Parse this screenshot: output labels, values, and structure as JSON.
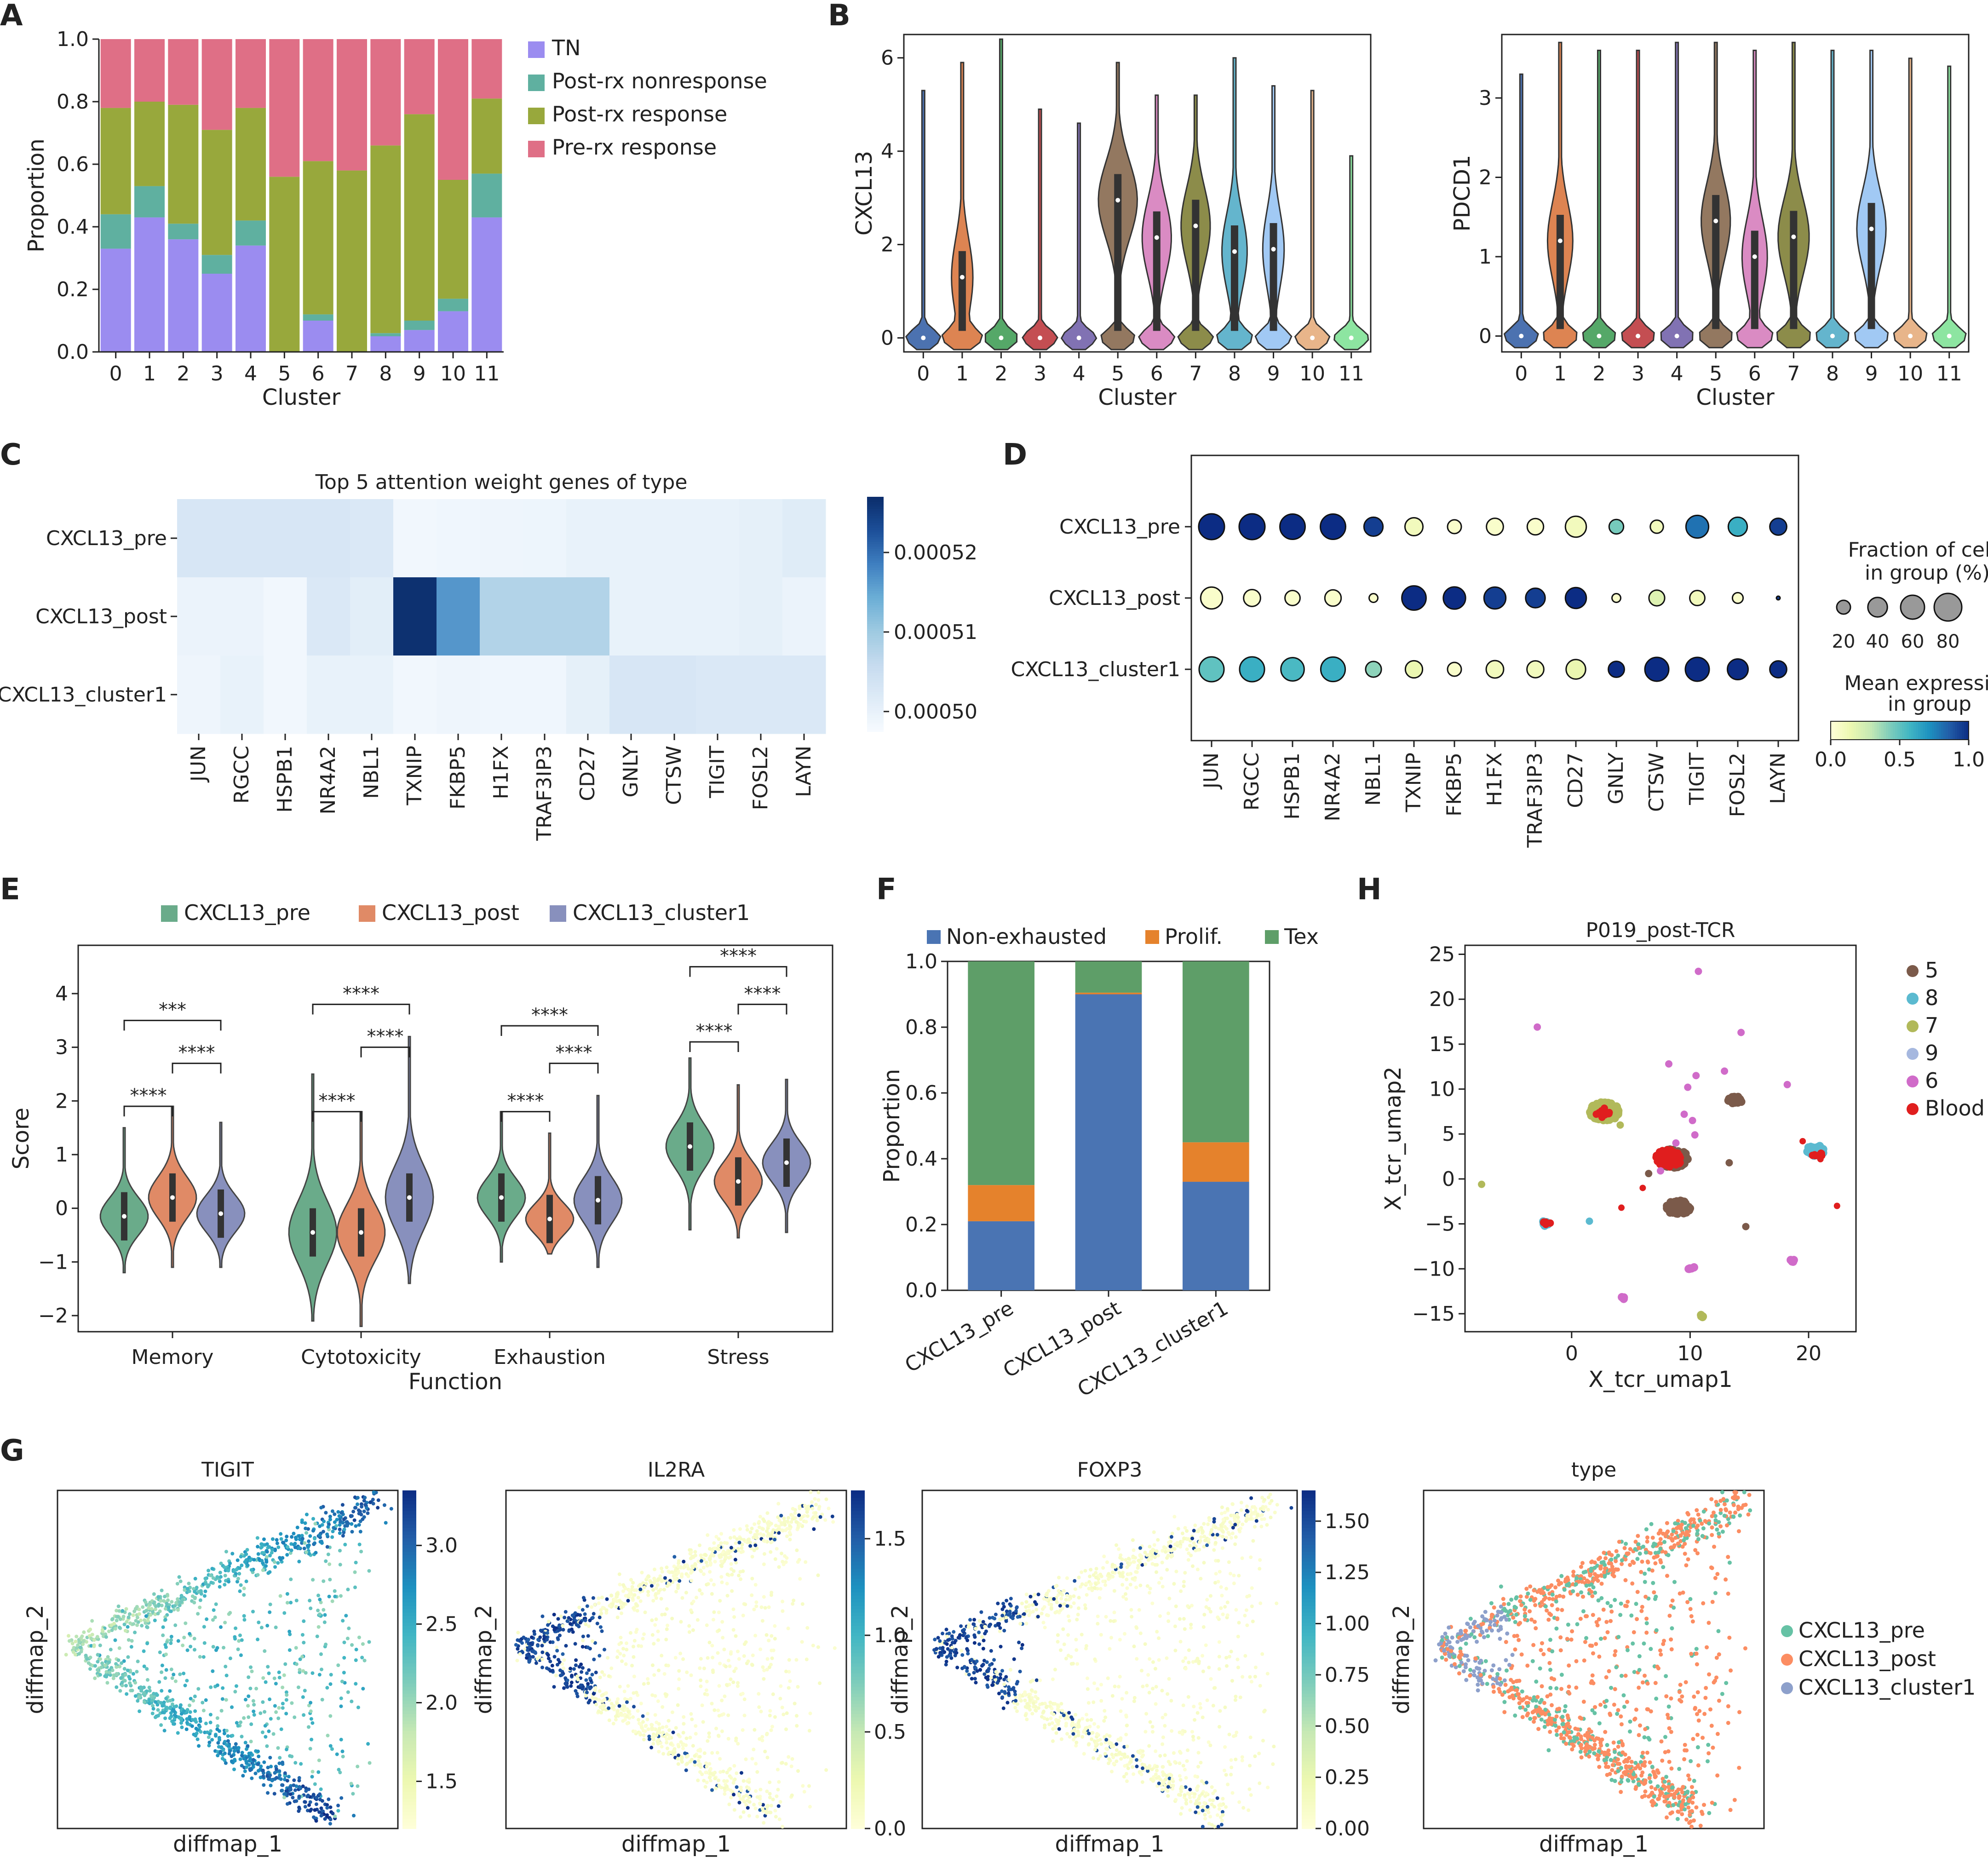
{
  "colors": {
    "cluster": [
      "#4c72b0",
      "#dd8452",
      "#55a868",
      "#c44e52",
      "#8172b3",
      "#937860",
      "#da8bc3",
      "#8c8c4a",
      "#64b5cd",
      "#a1c9f4",
      "#e8b58a",
      "#8de5a1"
    ],
    "A": {
      "TN": "#9b8cf0",
      "Post-rx nonresponse": "#5fb0a0",
      "Post-rx response": "#98a83c",
      "Pre-rx response": "#df6f86"
    },
    "E": {
      "CXCL13_pre": "#6aab8a",
      "CXCL13_post": "#e08a66",
      "CXCL13_cluster1": "#8890bd"
    },
    "F": {
      "Non-exhausted": "#4a74b3",
      "Prolif.": "#e5822c",
      "Tex": "#5e9e68"
    },
    "H": {
      "5": "#7b5a4a",
      "8": "#5bbad0",
      "7": "#b1b95a",
      "9": "#a6b8df",
      "6": "#d06bc9",
      "Blood": "#e01e1e"
    }
  },
  "panels": {
    "A": "A",
    "B": "B",
    "C": "C",
    "D": "D",
    "E": "E",
    "F": "F",
    "G": "G",
    "H": "H"
  },
  "chart_data": [
    {
      "panel": "A",
      "type": "bar",
      "stacked": true,
      "categories": [
        "0",
        "1",
        "2",
        "3",
        "4",
        "5",
        "6",
        "7",
        "8",
        "9",
        "10",
        "11"
      ],
      "series": [
        {
          "name": "TN",
          "values": [
            0.33,
            0.43,
            0.36,
            0.25,
            0.34,
            0.0,
            0.1,
            0.0,
            0.05,
            0.07,
            0.13,
            0.43
          ]
        },
        {
          "name": "Post-rx nonresponse",
          "values": [
            0.11,
            0.1,
            0.05,
            0.06,
            0.08,
            0.0,
            0.02,
            0.0,
            0.01,
            0.03,
            0.04,
            0.14
          ]
        },
        {
          "name": "Post-rx response",
          "values": [
            0.34,
            0.27,
            0.38,
            0.4,
            0.36,
            0.56,
            0.49,
            0.58,
            0.6,
            0.66,
            0.38,
            0.24
          ]
        },
        {
          "name": "Pre-rx response",
          "values": [
            0.22,
            0.2,
            0.21,
            0.29,
            0.22,
            0.44,
            0.39,
            0.42,
            0.34,
            0.24,
            0.45,
            0.19
          ]
        }
      ],
      "xlabel": "Cluster",
      "ylabel": "Proportion",
      "ylim": [
        0,
        1.0
      ],
      "yticks": [
        "0.0",
        "0.2",
        "0.4",
        "0.6",
        "0.8",
        "1.0"
      ],
      "legend": "right"
    },
    {
      "panel": "B1",
      "type": "violin",
      "gene": "CXCL13",
      "categories": [
        "0",
        "1",
        "2",
        "3",
        "4",
        "5",
        "6",
        "7",
        "8",
        "9",
        "10",
        "11"
      ],
      "max": [
        5.3,
        5.9,
        6.4,
        4.9,
        4.6,
        5.9,
        5.2,
        5.2,
        6.0,
        5.4,
        5.3,
        3.9
      ],
      "median": [
        0,
        1.3,
        0,
        0,
        0,
        2.95,
        2.15,
        2.4,
        1.85,
        1.9,
        0,
        0
      ],
      "upper_bulge": [
        0,
        0.55,
        0,
        0,
        0,
        1.0,
        0.75,
        0.75,
        0.65,
        0.55,
        0,
        0
      ],
      "xlabel": "Cluster",
      "ylabel": "CXCL13",
      "ylim": [
        -0.3,
        6.5
      ],
      "yticks": [
        "0",
        "2",
        "4",
        "6"
      ]
    },
    {
      "panel": "B2",
      "type": "violin",
      "gene": "PDCD1",
      "categories": [
        "0",
        "1",
        "2",
        "3",
        "4",
        "5",
        "6",
        "7",
        "8",
        "9",
        "10",
        "11"
      ],
      "max": [
        3.3,
        3.7,
        3.6,
        3.6,
        3.7,
        3.7,
        3.6,
        3.7,
        3.6,
        3.6,
        3.5,
        3.4
      ],
      "median": [
        0,
        1.2,
        0,
        0,
        0,
        1.45,
        1.0,
        1.25,
        0,
        1.35,
        0,
        0
      ],
      "upper_bulge": [
        0.25,
        0.65,
        0.2,
        0.3,
        0.35,
        0.75,
        0.65,
        0.8,
        0.3,
        0.75,
        0.15,
        0.35
      ],
      "xlabel": "Cluster",
      "ylabel": "PDCD1",
      "ylim": [
        -0.2,
        3.8
      ],
      "yticks": [
        "0",
        "1",
        "2",
        "3"
      ]
    },
    {
      "panel": "C",
      "type": "heatmap",
      "title": "Top 5 attention weight genes of type",
      "rows": [
        "CXCL13_pre",
        "CXCL13_post",
        "CXCL13_cluster1"
      ],
      "cols": [
        "JUN",
        "RGCC",
        "HSPB1",
        "NR4A2",
        "NBL1",
        "TXNIP",
        "FKBP5",
        "H1FX",
        "TRAF3IP3",
        "CD27",
        "GNLY",
        "CTSW",
        "TIGIT",
        "FOSL2",
        "LAYN"
      ],
      "values": [
        [
          0.503,
          0.503,
          0.503,
          0.503,
          0.5025,
          0.4985,
          0.4988,
          0.499,
          0.4992,
          0.5,
          0.5,
          0.5,
          0.5,
          0.5005,
          0.5015
        ],
        [
          0.4995,
          0.4995,
          0.4985,
          0.5025,
          0.501,
          0.5265,
          0.5165,
          0.508,
          0.508,
          0.508,
          0.5,
          0.5,
          0.5,
          0.5005,
          0.4995
        ],
        [
          0.499,
          0.5,
          0.4985,
          0.5,
          0.5,
          0.4985,
          0.499,
          0.4988,
          0.4988,
          0.5005,
          0.503,
          0.503,
          0.5025,
          0.5025,
          0.5025
        ]
      ],
      "vmin": 0.4975,
      "vmax": 0.527,
      "colorbar_ticks": [
        {
          "v": 0.5,
          "label": "0.00050"
        },
        {
          "v": 0.51,
          "label": "0.00051"
        },
        {
          "v": 0.52,
          "label": "0.00052"
        }
      ]
    },
    {
      "panel": "D",
      "type": "dotplot",
      "rows": [
        "CXCL13_pre",
        "CXCL13_post",
        "CXCL13_cluster1"
      ],
      "cols": [
        "JUN",
        "RGCC",
        "HSPB1",
        "NR4A2",
        "NBL1",
        "TXNIP",
        "FKBP5",
        "H1FX",
        "TRAF3IP3",
        "CD27",
        "GNLY",
        "CTSW",
        "TIGIT",
        "FOSL2",
        "LAYN"
      ],
      "fraction": [
        [
          70,
          70,
          67,
          67,
          38,
          34,
          20,
          30,
          28,
          46,
          22,
          18,
          54,
          38,
          30
        ],
        [
          50,
          30,
          24,
          28,
          8,
          62,
          52,
          50,
          40,
          46,
          8,
          26,
          24,
          12,
          1
        ],
        [
          65,
          65,
          57,
          63,
          26,
          31,
          20,
          32,
          30,
          40,
          27,
          60,
          60,
          45,
          30
        ]
      ],
      "mean_expr": [
        [
          1.0,
          1.0,
          1.0,
          1.0,
          0.95,
          0.1,
          0.05,
          0.05,
          0.05,
          0.1,
          0.45,
          0.1,
          0.8,
          0.6,
          0.95
        ],
        [
          0.05,
          0.05,
          0.05,
          0.05,
          0.05,
          1.0,
          1.0,
          0.95,
          0.95,
          1.0,
          0.05,
          0.2,
          0.1,
          0.05,
          0.95
        ],
        [
          0.5,
          0.6,
          0.55,
          0.6,
          0.4,
          0.15,
          0.05,
          0.1,
          0.1,
          0.15,
          1.0,
          1.0,
          1.0,
          1.0,
          1.0
        ]
      ],
      "size_legend_title": "Fraction of cells\nin group (%)",
      "size_legend": [
        20,
        40,
        60,
        80
      ],
      "color_legend_title": "Mean expression\nin group",
      "color_legend_ticks": [
        "0.0",
        "0.5",
        "1.0"
      ]
    },
    {
      "panel": "E",
      "type": "violin_grouped",
      "categories": [
        "Memory",
        "Cytotoxicity",
        "Exhaustion",
        "Stress"
      ],
      "series": [
        {
          "name": "CXCL13_pre",
          "median": [
            -0.15,
            -0.45,
            0.2,
            1.15
          ],
          "min": [
            -1.2,
            -2.1,
            -1.0,
            -0.4
          ],
          "max": [
            1.5,
            2.5,
            1.8,
            2.8
          ]
        },
        {
          "name": "CXCL13_post",
          "median": [
            0.2,
            -0.45,
            -0.2,
            0.5
          ],
          "min": [
            -1.1,
            -2.2,
            -0.85,
            -0.55
          ],
          "max": [
            1.9,
            1.8,
            1.4,
            2.3
          ]
        },
        {
          "name": "CXCL13_cluster1",
          "median": [
            -0.1,
            0.2,
            0.15,
            0.85
          ],
          "min": [
            -1.1,
            -1.4,
            -1.1,
            -0.45
          ],
          "max": [
            1.6,
            3.2,
            2.1,
            2.4
          ]
        }
      ],
      "significance": [
        {
          "cat": 0,
          "pairs": [
            [
              0,
              1,
              "****",
              1.9
            ],
            [
              1,
              2,
              "****",
              2.7
            ],
            [
              0,
              2,
              "***",
              3.5
            ]
          ]
        },
        {
          "cat": 1,
          "pairs": [
            [
              0,
              1,
              "****",
              1.8
            ],
            [
              1,
              2,
              "****",
              3.0
            ],
            [
              0,
              2,
              "****",
              3.8
            ]
          ]
        },
        {
          "cat": 2,
          "pairs": [
            [
              0,
              1,
              "****",
              1.8
            ],
            [
              1,
              2,
              "****",
              2.7
            ],
            [
              0,
              2,
              "****",
              3.4
            ]
          ]
        },
        {
          "cat": 3,
          "pairs": [
            [
              0,
              1,
              "****",
              3.1
            ],
            [
              1,
              2,
              "****",
              3.8
            ],
            [
              0,
              2,
              "****",
              4.5
            ]
          ]
        }
      ],
      "xlabel": "Function",
      "ylabel": "Score",
      "ylim": [
        -2.3,
        4.9
      ],
      "yticks": [
        "−2",
        "−1",
        "0",
        "1",
        "2",
        "3",
        "4"
      ],
      "legend": "top"
    },
    {
      "panel": "F",
      "type": "bar",
      "stacked": true,
      "categories": [
        "CXCL13_pre",
        "CXCL13_post",
        "CXCL13_cluster1"
      ],
      "series": [
        {
          "name": "Non-exhausted",
          "values": [
            0.21,
            0.9,
            0.33
          ]
        },
        {
          "name": "Prolif.",
          "values": [
            0.11,
            0.005,
            0.12
          ]
        },
        {
          "name": "Tex",
          "values": [
            0.68,
            0.095,
            0.55
          ]
        }
      ],
      "ylabel": "Proportion",
      "ylim": [
        0,
        1.0
      ],
      "yticks": [
        "0.0",
        "0.2",
        "0.4",
        "0.6",
        "0.8",
        "1.0"
      ],
      "legend": "top"
    },
    {
      "panel": "H",
      "type": "scatter",
      "title": "P019_post-TCR",
      "xlabel": "X_tcr_umap1",
      "ylabel": "X_tcr_umap2",
      "xlim": [
        -9,
        24
      ],
      "ylim": [
        -17,
        26
      ],
      "xticks": [
        "0",
        "10",
        "20"
      ],
      "yticks": [
        "−15",
        "−10",
        "−5",
        "0",
        "5",
        "10",
        "15",
        "20",
        "25"
      ],
      "legend_order": [
        "5",
        "8",
        "7",
        "9",
        "6",
        "Blood"
      ],
      "clusters": [
        {
          "group": "7",
          "x": 2.8,
          "y": 7.5,
          "r": 1.3,
          "n": 200
        },
        {
          "group": "Blood",
          "x": 2.7,
          "y": 7.4,
          "r": 0.7,
          "n": 15
        },
        {
          "group": "5",
          "x": 8.6,
          "y": 2.3,
          "r": 1.3,
          "n": 120
        },
        {
          "group": "Blood",
          "x": 8.2,
          "y": 2.3,
          "r": 1.2,
          "n": 60
        },
        {
          "group": "5",
          "x": 9.0,
          "y": -3.2,
          "r": 1.0,
          "n": 80
        },
        {
          "group": "5",
          "x": 13.8,
          "y": 8.7,
          "r": 0.6,
          "n": 30
        },
        {
          "group": "8",
          "x": 20.6,
          "y": 3.1,
          "r": 0.8,
          "n": 50
        },
        {
          "group": "Blood",
          "x": 20.8,
          "y": 2.7,
          "r": 0.5,
          "n": 8
        },
        {
          "group": "8",
          "x": -2.3,
          "y": -5.0,
          "r": 0.4,
          "n": 10
        },
        {
          "group": "Blood",
          "x": -2.1,
          "y": -4.9,
          "r": 0.3,
          "n": 5
        },
        {
          "group": "6",
          "x": 10.1,
          "y": -9.9,
          "r": 0.3,
          "n": 6
        },
        {
          "group": "6",
          "x": 18.7,
          "y": -9.0,
          "r": 0.3,
          "n": 6
        },
        {
          "group": "6",
          "x": 4.4,
          "y": -13.2,
          "r": 0.2,
          "n": 4
        },
        {
          "group": "7",
          "x": 10.9,
          "y": -15.3,
          "r": 0.2,
          "n": 4
        }
      ],
      "points": [
        {
          "group": "6",
          "x": -2.9,
          "y": 16.9
        },
        {
          "group": "6",
          "x": 10.7,
          "y": 23.1
        },
        {
          "group": "6",
          "x": 8.2,
          "y": 12.8
        },
        {
          "group": "6",
          "x": 9.8,
          "y": 10.2
        },
        {
          "group": "6",
          "x": 10.5,
          "y": 11.5
        },
        {
          "group": "6",
          "x": 12.9,
          "y": 12.0
        },
        {
          "group": "6",
          "x": 14.3,
          "y": 16.3
        },
        {
          "group": "6",
          "x": 18.2,
          "y": 10.5
        },
        {
          "group": "6",
          "x": 9.5,
          "y": 7.2
        },
        {
          "group": "6",
          "x": 10.2,
          "y": 6.5
        },
        {
          "group": "6",
          "x": 10.4,
          "y": 4.9
        },
        {
          "group": "6",
          "x": 8.8,
          "y": 4.0
        },
        {
          "group": "7",
          "x": -7.6,
          "y": -0.6
        },
        {
          "group": "7",
          "x": 4.1,
          "y": 6.0
        },
        {
          "group": "6",
          "x": 7.5,
          "y": 0.9
        },
        {
          "group": "8",
          "x": 1.5,
          "y": -4.7
        },
        {
          "group": "Blood",
          "x": 4.2,
          "y": -3.2
        },
        {
          "group": "Blood",
          "x": 6.0,
          "y": -1.0
        },
        {
          "group": "5",
          "x": 13.3,
          "y": 1.8
        },
        {
          "group": "5",
          "x": 14.7,
          "y": -5.3
        },
        {
          "group": "Blood",
          "x": 22.4,
          "y": -3.0
        },
        {
          "group": "Blood",
          "x": 19.5,
          "y": 4.2
        },
        {
          "group": "Blood",
          "x": 21.0,
          "y": 2.2
        },
        {
          "group": "5",
          "x": 6.5,
          "y": 0.6
        }
      ]
    },
    {
      "panel": "G1",
      "type": "scatter",
      "title": "TIGIT",
      "xlabel": "diffmap_1",
      "ylabel": "diffmap_2",
      "colorbar_ticks": [
        "1.5",
        "2.0",
        "2.5",
        "3.0"
      ],
      "colorbar_range": [
        1.2,
        3.35
      ]
    },
    {
      "panel": "G2",
      "type": "scatter",
      "title": "IL2RA",
      "xlabel": "diffmap_1",
      "ylabel": "diffmap_2",
      "colorbar_ticks": [
        "0.0",
        "0.5",
        "1.0",
        "1.5"
      ],
      "colorbar_range": [
        0,
        1.75
      ]
    },
    {
      "panel": "G3",
      "type": "scatter",
      "title": "FOXP3",
      "xlabel": "diffmap_1",
      "ylabel": "diffmap_2",
      "colorbar_ticks": [
        "0.00",
        "0.25",
        "0.50",
        "0.75",
        "1.00",
        "1.25",
        "1.50"
      ],
      "colorbar_range": [
        0,
        1.65
      ]
    },
    {
      "panel": "G4",
      "type": "scatter",
      "title": "type",
      "xlabel": "diffmap_1",
      "ylabel": "diffmap_2",
      "legend": [
        "CXCL13_pre",
        "CXCL13_post",
        "CXCL13_cluster1"
      ],
      "legend_colors": [
        "#66c2a5",
        "#fc8d62",
        "#8da0cb"
      ]
    }
  ]
}
